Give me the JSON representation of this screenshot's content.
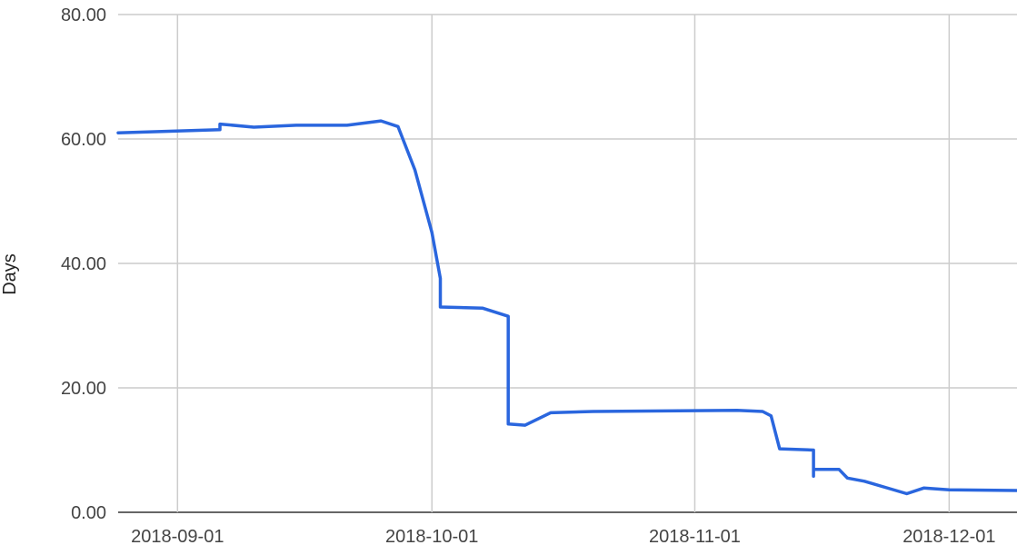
{
  "chart_data": {
    "type": "line",
    "title": "",
    "xlabel": "",
    "ylabel": "Days",
    "x_axis_type": "date",
    "xlim": [
      "2018-08-25",
      "2018-12-09"
    ],
    "ylim": [
      0,
      80
    ],
    "y_ticks": [
      0,
      20,
      40,
      60,
      80
    ],
    "y_tick_labels": [
      "0.00",
      "20.00",
      "40.00",
      "60.00",
      "80.00"
    ],
    "x_ticks": [
      "2018-09-01",
      "2018-10-01",
      "2018-11-01",
      "2018-12-01"
    ],
    "x_tick_labels": [
      "2018-09-01",
      "2018-10-01",
      "2018-11-01",
      "2018-12-01"
    ],
    "grid": true,
    "legend": "none",
    "series": [
      {
        "color": "#2a66de",
        "points": [
          [
            "2018-08-25",
            61.0
          ],
          [
            "2018-09-06",
            61.5
          ],
          [
            "2018-09-06",
            62.4
          ],
          [
            "2018-09-10",
            61.9
          ],
          [
            "2018-09-15",
            62.2
          ],
          [
            "2018-09-21",
            62.2
          ],
          [
            "2018-09-25",
            62.9
          ],
          [
            "2018-09-27",
            62.0
          ],
          [
            "2018-09-29",
            55.0
          ],
          [
            "2018-10-01",
            45.0
          ],
          [
            "2018-10-02",
            37.6
          ],
          [
            "2018-10-02",
            33.0
          ],
          [
            "2018-10-07",
            32.8
          ],
          [
            "2018-10-10",
            31.5
          ],
          [
            "2018-10-10",
            14.2
          ],
          [
            "2018-10-12",
            14.0
          ],
          [
            "2018-10-15",
            16.0
          ],
          [
            "2018-10-20",
            16.2
          ],
          [
            "2018-11-06",
            16.4
          ],
          [
            "2018-11-09",
            16.2
          ],
          [
            "2018-11-10",
            15.5
          ],
          [
            "2018-11-11",
            10.2
          ],
          [
            "2018-11-15",
            10.0
          ],
          [
            "2018-11-15",
            5.8
          ],
          [
            "2018-11-15",
            6.9
          ],
          [
            "2018-11-18",
            6.9
          ],
          [
            "2018-11-19",
            5.5
          ],
          [
            "2018-11-21",
            5.0
          ],
          [
            "2018-11-24",
            3.8
          ],
          [
            "2018-11-26",
            3.0
          ],
          [
            "2018-11-28",
            3.9
          ],
          [
            "2018-12-01",
            3.6
          ],
          [
            "2018-12-09",
            3.5
          ]
        ]
      }
    ]
  }
}
